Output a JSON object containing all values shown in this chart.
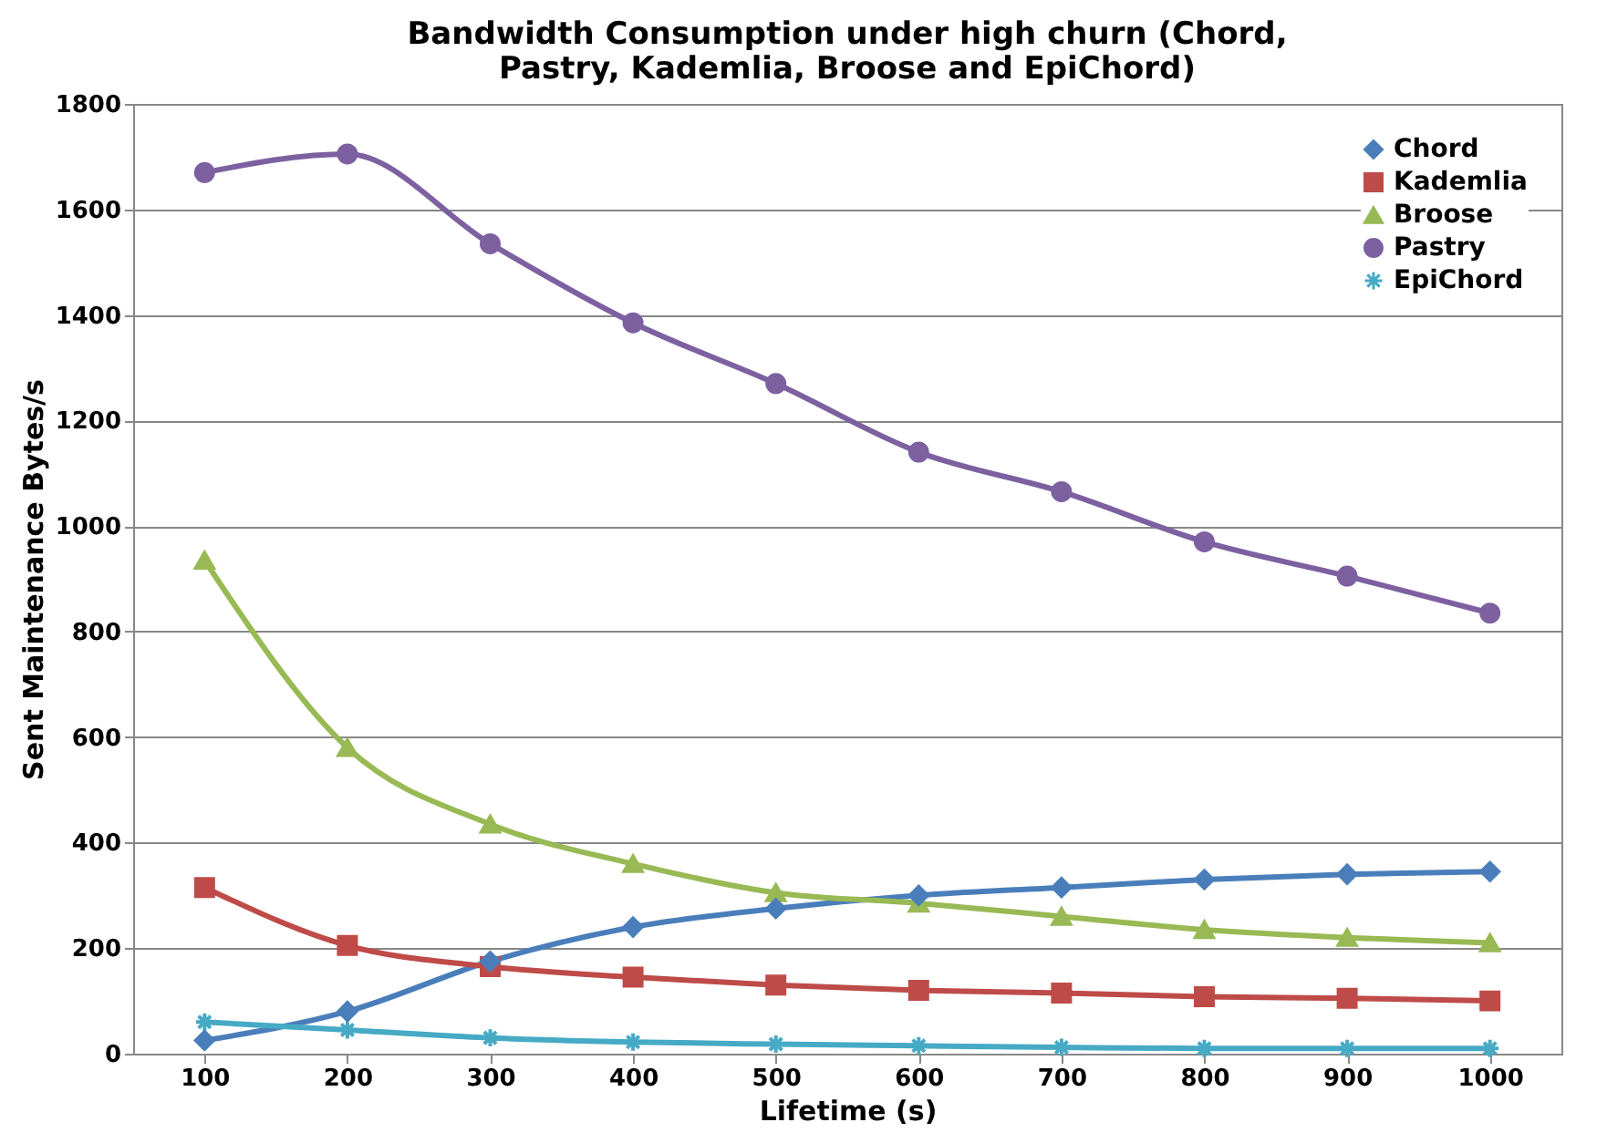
{
  "chart_data": {
    "type": "line",
    "title": "Bandwidth Consumption under high churn (Chord, Pastry, Kademlia, Broose and EpiChord)",
    "xlabel": "Lifetime (s)",
    "ylabel": "Sent Maintenance Bytes/s",
    "categories": [
      "100",
      "200",
      "300",
      "400",
      "500",
      "600",
      "700",
      "800",
      "900",
      "1000"
    ],
    "series": [
      {
        "name": "Chord",
        "color": "#4a7ebb",
        "marker": "diamond",
        "values": [
          25,
          80,
          175,
          240,
          275,
          300,
          315,
          330,
          340,
          345
        ]
      },
      {
        "name": "Kademlia",
        "color": "#be4b48",
        "marker": "square",
        "values": [
          315,
          205,
          165,
          145,
          130,
          120,
          115,
          108,
          105,
          100
        ]
      },
      {
        "name": "Broose",
        "color": "#98b954",
        "marker": "triangle",
        "values": [
          935,
          580,
          435,
          360,
          305,
          285,
          260,
          235,
          220,
          210
        ]
      },
      {
        "name": "Pastry",
        "color": "#7d60a0",
        "marker": "circle",
        "values": [
          1670,
          1705,
          1535,
          1385,
          1270,
          1140,
          1065,
          970,
          905,
          835
        ]
      },
      {
        "name": "EpiChord",
        "color": "#46aac5",
        "marker": "cross",
        "values": [
          60,
          45,
          30,
          22,
          18,
          15,
          12,
          10,
          10,
          10
        ]
      }
    ],
    "ylim": [
      0,
      1800
    ],
    "yticks": [
      0,
      200,
      400,
      600,
      800,
      1000,
      1200,
      1400,
      1600,
      1800
    ],
    "grid": "y",
    "legend": "top right",
    "line_style": "solid"
  }
}
